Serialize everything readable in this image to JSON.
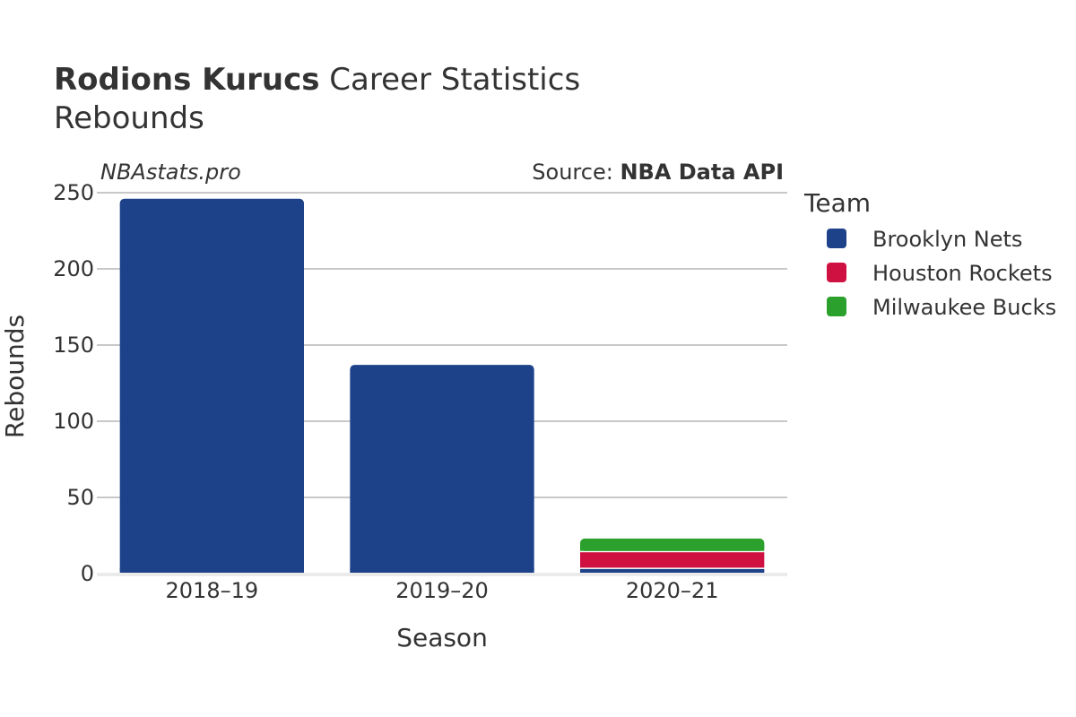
{
  "header": {
    "player_name": "Rodions Kurucs",
    "title_rest": " Career Statistics",
    "subtitle": "Rebounds"
  },
  "watermark": "NBAstats.pro",
  "source": {
    "label": "Source: ",
    "value": "NBA Data API"
  },
  "legend": {
    "title": "Team"
  },
  "chart_data": {
    "type": "bar",
    "stacked": true,
    "categories": [
      "2018–19",
      "2019–20",
      "2020–21"
    ],
    "series": [
      {
        "name": "Brooklyn Nets",
        "color": "#1d428a",
        "values": [
          246,
          137,
          3
        ]
      },
      {
        "name": "Houston Rockets",
        "color": "#ce1141",
        "values": [
          0,
          0,
          11
        ]
      },
      {
        "name": "Milwaukee Bucks",
        "color": "#2ca02c",
        "values": [
          0,
          0,
          9
        ]
      }
    ],
    "xlabel": "Season",
    "ylabel": "Rebounds",
    "ylim": [
      0,
      250
    ],
    "yticks": [
      0,
      50,
      100,
      150,
      200,
      250
    ],
    "grid": true,
    "legend_position": "right"
  }
}
